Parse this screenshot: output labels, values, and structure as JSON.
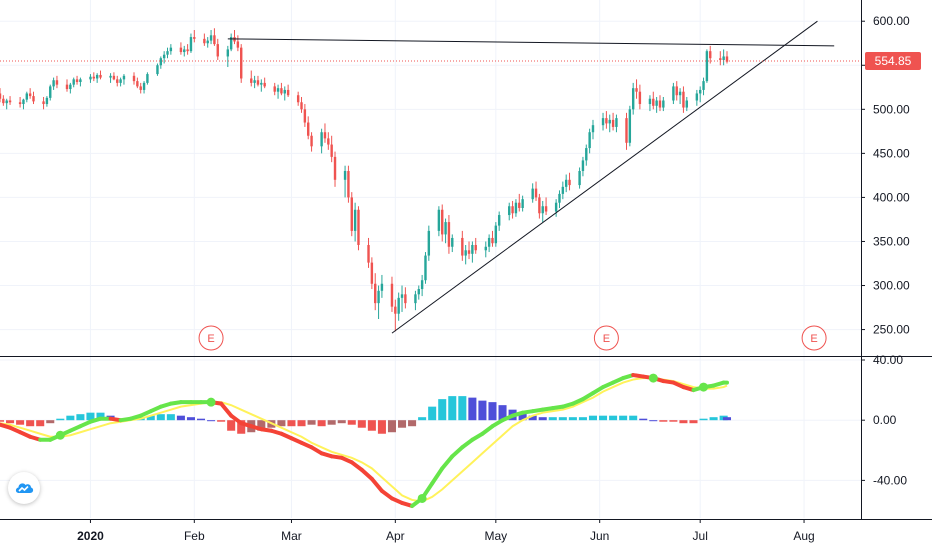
{
  "chart_data": {
    "type": "candlestick",
    "panels": [
      "price",
      "macd"
    ],
    "price_axis": {
      "range": [
        220,
        615
      ],
      "ticks": [
        250,
        300,
        350,
        400,
        450,
        500,
        550,
        600
      ],
      "tick_labels": [
        "250.00",
        "300.00",
        "350.00",
        "400.00",
        "450.00",
        "500.00",
        "550.00",
        "600.00"
      ]
    },
    "last_price": 554.85,
    "last_price_label": "554.85",
    "colors": {
      "up": "#26a69a",
      "down": "#ef5350",
      "last_price_line": "#ef5350",
      "earnings": "#ef5350",
      "hist_up_strong": "#26c6da",
      "hist_up_weak": "#4f4fd9",
      "hist_down_strong": "#ef5350",
      "hist_down_weak": "#b2696a",
      "macd_rising": "#66e54a",
      "macd_falling": "#f44336",
      "signal": "#fff25a"
    },
    "time_axis": {
      "labels": [
        {
          "text": "2020",
          "bold": true,
          "day": 0
        },
        {
          "text": "Feb",
          "bold": false,
          "day": 31
        },
        {
          "text": "Mar",
          "bold": false,
          "day": 60
        },
        {
          "text": "Apr",
          "bold": false,
          "day": 91
        },
        {
          "text": "May",
          "bold": false,
          "day": 121
        },
        {
          "text": "Jun",
          "bold": false,
          "day": 152
        },
        {
          "text": "Jul",
          "bold": false,
          "day": 182
        },
        {
          "text": "Aug",
          "bold": false,
          "day": 213
        }
      ],
      "range_days": [
        -27,
        230
      ]
    },
    "ohlc": [
      [
        -27,
        518,
        524,
        508,
        512
      ],
      [
        -26,
        512,
        516,
        504,
        507
      ],
      [
        -25,
        507,
        512,
        500,
        510
      ],
      [
        -24,
        510,
        515,
        505,
        508
      ],
      [
        -21,
        508,
        514,
        502,
        506
      ],
      [
        -20,
        506,
        512,
        500,
        511
      ],
      [
        -19,
        511,
        520,
        508,
        518
      ],
      [
        -18,
        518,
        524,
        512,
        515
      ],
      [
        -17,
        515,
        520,
        506,
        509
      ],
      [
        -14,
        509,
        514,
        500,
        506
      ],
      [
        -13,
        506,
        515,
        503,
        513
      ],
      [
        -12,
        513,
        528,
        510,
        526
      ],
      [
        -11,
        526,
        536,
        522,
        533
      ],
      [
        -10,
        533,
        538,
        524,
        528
      ],
      [
        -7,
        528,
        534,
        520,
        523
      ],
      [
        -6,
        523,
        530,
        518,
        528
      ],
      [
        -5,
        528,
        536,
        525,
        534
      ],
      [
        -4,
        534,
        538,
        528,
        531
      ],
      [
        -3,
        531,
        536,
        526,
        534
      ],
      [
        0,
        534,
        540,
        530,
        537
      ],
      [
        1,
        537,
        542,
        532,
        535
      ],
      [
        2,
        535,
        541,
        530,
        539
      ],
      [
        3,
        539,
        544,
        534,
        536
      ],
      [
        6,
        536,
        541,
        530,
        538
      ],
      [
        7,
        538,
        542,
        533,
        534
      ],
      [
        8,
        534,
        538,
        526,
        530
      ],
      [
        9,
        530,
        536,
        526,
        534
      ],
      [
        10,
        534,
        540,
        528,
        538
      ],
      [
        13,
        538,
        542,
        528,
        532
      ],
      [
        14,
        532,
        536,
        524,
        526
      ],
      [
        15,
        526,
        530,
        518,
        522
      ],
      [
        16,
        522,
        532,
        518,
        530
      ],
      [
        17,
        530,
        542,
        528,
        540
      ],
      [
        20,
        540,
        552,
        538,
        550
      ],
      [
        21,
        550,
        560,
        546,
        558
      ],
      [
        22,
        558,
        566,
        552,
        562
      ],
      [
        23,
        562,
        570,
        558,
        566
      ],
      [
        24,
        566,
        574,
        562,
        570
      ],
      [
        27,
        570,
        576,
        562,
        565
      ],
      [
        28,
        565,
        572,
        560,
        568
      ],
      [
        29,
        568,
        574,
        562,
        566
      ],
      [
        30,
        566,
        586,
        564,
        582
      ],
      [
        31,
        582,
        590,
        576,
        580
      ],
      [
        34,
        580,
        586,
        572,
        575
      ],
      [
        35,
        575,
        582,
        570,
        578
      ],
      [
        36,
        578,
        590,
        574,
        584
      ],
      [
        37,
        584,
        592,
        572,
        574
      ],
      [
        38,
        574,
        580,
        556,
        560
      ],
      [
        41,
        560,
        572,
        548,
        568
      ],
      [
        42,
        568,
        586,
        566,
        582
      ],
      [
        43,
        582,
        590,
        574,
        577
      ],
      [
        44,
        577,
        584,
        566,
        570
      ],
      [
        45,
        570,
        574,
        530,
        535
      ],
      [
        48,
        535,
        544,
        526,
        530
      ],
      [
        49,
        530,
        538,
        524,
        533
      ],
      [
        50,
        533,
        538,
        526,
        528
      ],
      [
        51,
        528,
        534,
        520,
        530
      ],
      [
        52,
        530,
        536,
        524,
        526
      ],
      [
        55,
        526,
        530,
        516,
        520
      ],
      [
        56,
        520,
        528,
        512,
        524
      ],
      [
        57,
        524,
        530,
        516,
        518
      ],
      [
        58,
        518,
        526,
        510,
        522
      ],
      [
        59,
        522,
        528,
        514,
        516
      ],
      [
        62,
        516,
        520,
        504,
        508
      ],
      [
        63,
        508,
        514,
        496,
        500
      ],
      [
        64,
        500,
        506,
        480,
        485
      ],
      [
        65,
        485,
        492,
        466,
        470
      ],
      [
        66,
        470,
        474,
        452,
        458
      ],
      [
        69,
        458,
        478,
        450,
        474
      ],
      [
        70,
        474,
        484,
        462,
        467
      ],
      [
        71,
        467,
        474,
        454,
        460
      ],
      [
        72,
        460,
        470,
        440,
        446
      ],
      [
        73,
        446,
        452,
        412,
        420
      ],
      [
        76,
        420,
        436,
        400,
        430
      ],
      [
        77,
        430,
        436,
        394,
        400
      ],
      [
        78,
        400,
        406,
        356,
        362
      ],
      [
        79,
        362,
        394,
        350,
        386
      ],
      [
        80,
        386,
        390,
        340,
        346
      ],
      [
        83,
        346,
        354,
        320,
        326
      ],
      [
        84,
        326,
        332,
        296,
        302
      ],
      [
        85,
        302,
        314,
        272,
        280
      ],
      [
        86,
        280,
        300,
        262,
        294
      ],
      [
        87,
        294,
        312,
        286,
        302
      ],
      [
        90,
        302,
        310,
        270,
        276
      ],
      [
        91,
        276,
        284,
        248,
        268
      ],
      [
        92,
        268,
        292,
        260,
        286
      ],
      [
        93,
        286,
        300,
        270,
        290
      ],
      [
        94,
        290,
        298,
        274,
        280
      ],
      [
        97,
        280,
        294,
        272,
        290
      ],
      [
        98,
        290,
        300,
        284,
        296
      ],
      [
        99,
        296,
        312,
        288,
        306
      ],
      [
        100,
        306,
        338,
        302,
        334
      ],
      [
        101,
        334,
        368,
        328,
        362
      ],
      [
        104,
        362,
        390,
        356,
        386
      ],
      [
        105,
        386,
        392,
        350,
        358
      ],
      [
        106,
        358,
        376,
        348,
        372
      ],
      [
        107,
        372,
        380,
        336,
        344
      ],
      [
        108,
        344,
        358,
        338,
        354
      ],
      [
        111,
        354,
        362,
        328,
        334
      ],
      [
        112,
        334,
        346,
        324,
        340
      ],
      [
        113,
        340,
        350,
        330,
        336
      ],
      [
        114,
        336,
        350,
        326,
        346
      ],
      [
        115,
        346,
        354,
        336,
        340
      ],
      [
        118,
        340,
        350,
        332,
        344
      ],
      [
        119,
        344,
        358,
        338,
        354
      ],
      [
        120,
        354,
        362,
        344,
        348
      ],
      [
        121,
        348,
        372,
        344,
        368
      ],
      [
        122,
        368,
        384,
        362,
        380
      ],
      [
        125,
        380,
        394,
        374,
        390
      ],
      [
        126,
        390,
        396,
        376,
        382
      ],
      [
        127,
        382,
        398,
        378,
        394
      ],
      [
        128,
        394,
        404,
        384,
        388
      ],
      [
        129,
        388,
        402,
        384,
        398
      ],
      [
        132,
        398,
        416,
        394,
        410
      ],
      [
        133,
        410,
        418,
        396,
        400
      ],
      [
        134,
        400,
        404,
        376,
        382
      ],
      [
        135,
        382,
        396,
        372,
        390
      ],
      [
        136,
        390,
        400,
        380,
        384
      ],
      [
        139,
        384,
        398,
        378,
        394
      ],
      [
        140,
        394,
        408,
        388,
        404
      ],
      [
        141,
        404,
        418,
        398,
        412
      ],
      [
        142,
        412,
        426,
        406,
        420
      ],
      [
        143,
        420,
        428,
        408,
        414
      ],
      [
        146,
        414,
        434,
        410,
        430
      ],
      [
        147,
        430,
        446,
        424,
        442
      ],
      [
        148,
        442,
        460,
        436,
        456
      ],
      [
        149,
        456,
        478,
        450,
        474
      ],
      [
        150,
        474,
        488,
        466,
        482
      ],
      [
        153,
        482,
        496,
        476,
        490
      ],
      [
        154,
        490,
        498,
        478,
        484
      ],
      [
        155,
        484,
        494,
        474,
        488
      ],
      [
        156,
        488,
        496,
        476,
        480
      ],
      [
        157,
        480,
        494,
        474,
        490
      ],
      [
        160,
        490,
        496,
        454,
        462
      ],
      [
        161,
        462,
        504,
        458,
        500
      ],
      [
        162,
        500,
        530,
        494,
        524
      ],
      [
        163,
        524,
        534,
        512,
        520
      ],
      [
        164,
        520,
        528,
        500,
        506
      ],
      [
        167,
        506,
        516,
        498,
        512
      ],
      [
        168,
        512,
        520,
        500,
        504
      ],
      [
        169,
        504,
        514,
        496,
        510
      ],
      [
        170,
        510,
        516,
        498,
        502
      ],
      [
        171,
        502,
        514,
        498,
        510
      ],
      [
        174,
        510,
        530,
        506,
        526
      ],
      [
        175,
        526,
        532,
        510,
        516
      ],
      [
        176,
        516,
        524,
        506,
        520
      ],
      [
        177,
        520,
        526,
        496,
        502
      ],
      [
        178,
        502,
        514,
        498,
        510
      ],
      [
        181,
        510,
        522,
        504,
        518
      ],
      [
        182,
        518,
        526,
        508,
        522
      ],
      [
        183,
        522,
        536,
        516,
        532
      ],
      [
        184,
        532,
        568,
        530,
        566
      ],
      [
        185,
        566,
        572,
        552,
        558
      ],
      [
        188,
        558,
        566,
        550,
        556
      ],
      [
        189,
        556,
        568,
        550,
        560
      ],
      [
        190,
        560,
        566,
        552,
        554
      ]
    ],
    "lines": [
      {
        "name": "resistance",
        "from": [
          41,
          580
        ],
        "to": [
          222,
          572
        ]
      },
      {
        "name": "support",
        "from": [
          90,
          246
        ],
        "to": [
          217,
          600
        ]
      }
    ],
    "earnings": [
      {
        "day": 36,
        "label": "E"
      },
      {
        "day": 154,
        "label": "E"
      },
      {
        "day": 216,
        "label": "E"
      }
    ],
    "macd": {
      "range": [
        -65,
        42
      ],
      "ticks": [
        40,
        0,
        -40
      ],
      "tick_labels": [
        "40.00",
        "0.00",
        "-40.00"
      ],
      "days": [
        -27,
        -24,
        -21,
        -18,
        -15,
        -12,
        -9,
        -6,
        -3,
        0,
        3,
        6,
        9,
        12,
        15,
        18,
        21,
        24,
        27,
        30,
        33,
        36,
        39,
        42,
        45,
        48,
        51,
        54,
        57,
        60,
        63,
        66,
        69,
        72,
        75,
        78,
        81,
        84,
        87,
        90,
        93,
        96,
        99,
        102,
        105,
        108,
        111,
        114,
        117,
        120,
        123,
        126,
        129,
        132,
        135,
        138,
        141,
        144,
        147,
        150,
        153,
        156,
        159,
        162,
        165,
        168,
        171,
        174,
        177,
        180,
        183,
        186,
        189,
        190
      ],
      "macd_line": [
        -3,
        -5,
        -8,
        -11,
        -13,
        -13,
        -10,
        -7,
        -4,
        -1,
        1,
        1,
        0,
        1,
        3,
        6,
        9,
        11,
        12,
        12,
        12,
        12,
        11,
        3,
        -2,
        -4,
        -6,
        -7,
        -9,
        -12,
        -15,
        -18,
        -22,
        -24,
        -25,
        -28,
        -33,
        -39,
        -47,
        -52,
        -55,
        -57,
        -52,
        -42,
        -32,
        -24,
        -18,
        -13,
        -9,
        -4,
        0,
        3,
        5,
        6,
        7,
        8,
        9,
        11,
        14,
        18,
        22,
        25,
        28,
        30,
        29,
        28,
        26,
        25,
        22,
        20,
        22,
        23,
        25,
        25
      ],
      "signal_line": [
        -2,
        -3,
        -5,
        -7,
        -9,
        -11,
        -11,
        -10,
        -8,
        -6,
        -4,
        -2,
        -1,
        0,
        1,
        3,
        5,
        7,
        9,
        10,
        11,
        12,
        12,
        10,
        7,
        4,
        1,
        -2,
        -5,
        -8,
        -11,
        -15,
        -18,
        -21,
        -23,
        -25,
        -28,
        -32,
        -38,
        -44,
        -50,
        -53,
        -54,
        -51,
        -46,
        -40,
        -34,
        -28,
        -22,
        -16,
        -10,
        -4,
        0,
        3,
        5,
        6,
        7,
        9,
        12,
        15,
        19,
        22,
        25,
        27,
        28,
        28,
        27,
        26,
        24,
        22,
        21,
        21,
        22,
        23
      ],
      "histogram": [
        -1,
        -2,
        -3,
        -4,
        -4,
        -2,
        1,
        3,
        4,
        5,
        5,
        3,
        1,
        1,
        2,
        3,
        4,
        4,
        3,
        2,
        1,
        0,
        -1,
        -7,
        -9,
        -8,
        -7,
        -5,
        -4,
        -4,
        -4,
        -3,
        -4,
        -3,
        -2,
        -3,
        -5,
        -7,
        -9,
        -8,
        -5,
        -4,
        2,
        9,
        14,
        16,
        16,
        15,
        13,
        12,
        10,
        7,
        5,
        3,
        2,
        2,
        2,
        2,
        2,
        3,
        3,
        3,
        3,
        3,
        1,
        0,
        -1,
        -1,
        -2,
        -2,
        1,
        2,
        3,
        2
      ]
    }
  }
}
